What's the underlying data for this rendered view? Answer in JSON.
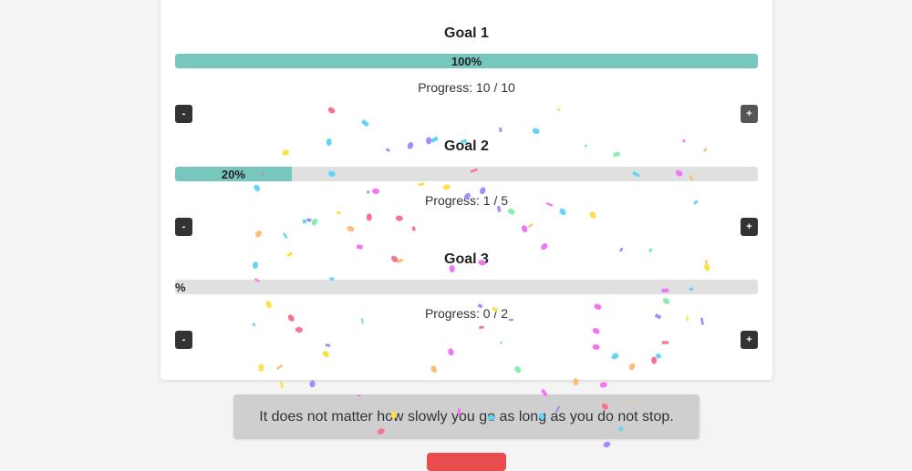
{
  "goals": [
    {
      "title": "Goal 1",
      "percent_label": "100%",
      "percent": 100,
      "progress_text": "Progress: 10 / 10",
      "minus_label": "-",
      "plus_label": "+"
    },
    {
      "title": "Goal 2",
      "percent_label": "20%",
      "percent": 20,
      "progress_text": "Progress: 1 / 5",
      "minus_label": "-",
      "plus_label": "+"
    },
    {
      "title": "Goal 3",
      "percent_label": "%",
      "percent": 0,
      "progress_text": "Progress: 0 / 2",
      "minus_label": "-",
      "plus_label": "+"
    }
  ],
  "quote": "It does not matter how slowly you go as long as you do not stop.",
  "colors": {
    "accent": "#78c7bf",
    "track": "#e0e0e0",
    "button": "#333333",
    "reset": "#e84c4c"
  },
  "confetti_colors": [
    "#f472f4",
    "#a78bfa",
    "#60d5f7",
    "#fbbf77",
    "#fde047",
    "#86efac",
    "#f87191"
  ]
}
